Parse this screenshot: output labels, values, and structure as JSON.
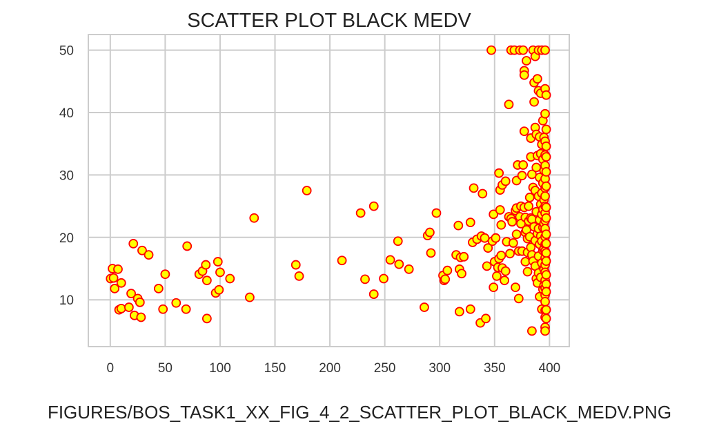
{
  "chart_data": {
    "type": "scatter",
    "title": "SCATTER PLOT BLACK MEDV",
    "xlabel": "",
    "ylabel": "",
    "xlim": [
      -20,
      418
    ],
    "ylim": [
      2.5,
      52.5
    ],
    "xticks": [
      0,
      50,
      100,
      150,
      200,
      250,
      300,
      350,
      400
    ],
    "yticks": [
      10,
      20,
      30,
      40,
      50
    ],
    "grid": true,
    "marker": {
      "fill": "#ffff00",
      "edge": "#ff0000"
    },
    "points": [
      [
        0.3,
        13.4
      ],
      [
        2,
        15
      ],
      [
        3,
        13.5
      ],
      [
        4,
        11.8
      ],
      [
        7,
        14.9
      ],
      [
        8,
        8.4
      ],
      [
        10,
        12.7
      ],
      [
        10,
        8.6
      ],
      [
        17,
        8.8
      ],
      [
        19,
        11
      ],
      [
        21,
        19
      ],
      [
        22,
        7.5
      ],
      [
        25,
        10.2
      ],
      [
        27,
        9.6
      ],
      [
        28,
        7.2
      ],
      [
        29,
        17.9
      ],
      [
        35,
        17.2
      ],
      [
        44,
        11.8
      ],
      [
        48,
        8.5
      ],
      [
        50,
        14.1
      ],
      [
        60,
        9.5
      ],
      [
        69,
        8.5
      ],
      [
        70,
        18.6
      ],
      [
        81,
        14.1
      ],
      [
        84,
        14.6
      ],
      [
        87,
        15.6
      ],
      [
        88,
        13.1
      ],
      [
        88,
        7
      ],
      [
        96,
        11.1
      ],
      [
        98,
        16.1
      ],
      [
        99,
        11.6
      ],
      [
        100,
        14.4
      ],
      [
        109,
        13.4
      ],
      [
        127,
        10.4
      ],
      [
        131,
        23.1
      ],
      [
        169,
        15.6
      ],
      [
        172,
        13.8
      ],
      [
        179,
        27.5
      ],
      [
        211,
        16.3
      ],
      [
        228,
        23.9
      ],
      [
        232,
        13.3
      ],
      [
        240,
        25
      ],
      [
        240,
        10.9
      ],
      [
        249,
        13.4
      ],
      [
        255,
        16.4
      ],
      [
        262,
        19.4
      ],
      [
        263,
        15.7
      ],
      [
        272,
        14.9
      ],
      [
        286,
        8.8
      ],
      [
        289,
        20.3
      ],
      [
        291,
        20.8
      ],
      [
        292,
        17.5
      ],
      [
        297,
        23.9
      ],
      [
        303,
        13.9
      ],
      [
        304,
        13.1
      ],
      [
        305,
        13.3
      ],
      [
        307,
        14.7
      ],
      [
        315,
        17.2
      ],
      [
        317,
        21.9
      ],
      [
        318,
        14.9
      ],
      [
        318,
        8.1
      ],
      [
        319,
        16.8
      ],
      [
        320,
        14.2
      ],
      [
        322,
        16.9
      ],
      [
        328,
        8.5
      ],
      [
        328,
        22.4
      ],
      [
        330,
        19.2
      ],
      [
        331,
        27.9
      ],
      [
        334,
        19.7
      ],
      [
        337,
        6.3
      ],
      [
        338,
        20.2
      ],
      [
        339,
        27
      ],
      [
        341,
        19.9
      ],
      [
        342,
        7
      ],
      [
        343,
        15.4
      ],
      [
        344,
        18.3
      ],
      [
        347,
        50
      ],
      [
        348,
        19.4
      ],
      [
        349,
        12
      ],
      [
        349,
        23.7
      ],
      [
        350,
        16.1
      ],
      [
        351,
        19.9
      ],
      [
        352,
        13.8
      ],
      [
        353,
        15.2
      ],
      [
        354,
        30.3
      ],
      [
        354,
        16.6
      ],
      [
        355,
        24.4
      ],
      [
        355,
        27.6
      ],
      [
        356,
        22
      ],
      [
        356,
        17.1
      ],
      [
        357,
        15.1
      ],
      [
        357,
        28.4
      ],
      [
        359,
        13.1
      ],
      [
        360,
        29
      ],
      [
        360,
        14.6
      ],
      [
        361,
        19.3
      ],
      [
        363,
        41.3
      ],
      [
        363,
        23.3
      ],
      [
        364,
        17.4
      ],
      [
        365,
        23
      ],
      [
        365,
        50
      ],
      [
        366,
        22.5
      ],
      [
        367,
        19.1
      ],
      [
        368,
        50
      ],
      [
        369,
        12
      ],
      [
        369,
        24.3
      ],
      [
        370,
        24.7
      ],
      [
        370,
        20.5
      ],
      [
        370,
        29.1
      ],
      [
        371,
        31.6
      ],
      [
        372,
        17.8
      ],
      [
        372,
        10.2
      ],
      [
        373,
        23.3
      ],
      [
        373,
        50
      ],
      [
        374,
        22.2
      ],
      [
        374,
        25
      ],
      [
        375,
        29.9
      ],
      [
        375,
        17.8
      ],
      [
        376,
        50
      ],
      [
        376,
        31.6
      ],
      [
        377,
        46.7
      ],
      [
        377,
        46
      ],
      [
        377,
        24.8
      ],
      [
        377,
        37
      ],
      [
        378,
        23.2
      ],
      [
        378,
        20.8
      ],
      [
        378,
        16.1
      ],
      [
        379,
        48.3
      ],
      [
        379,
        21.2
      ],
      [
        380,
        19.8
      ],
      [
        380,
        17.6
      ],
      [
        380,
        14.5
      ],
      [
        381,
        25
      ],
      [
        381,
        22.6
      ],
      [
        382,
        26.4
      ],
      [
        382,
        20.1
      ],
      [
        383,
        35.9
      ],
      [
        383,
        32.9
      ],
      [
        383,
        23.1
      ],
      [
        383,
        18.4
      ],
      [
        384,
        30.1
      ],
      [
        384,
        22.9
      ],
      [
        384,
        17.2
      ],
      [
        384,
        5
      ],
      [
        385,
        16.2
      ],
      [
        385,
        50
      ],
      [
        385,
        28
      ],
      [
        386,
        41.7
      ],
      [
        386,
        44.8
      ],
      [
        386,
        21.7
      ],
      [
        387,
        49
      ],
      [
        387,
        37.6
      ],
      [
        387,
        27.5
      ],
      [
        387,
        19.5
      ],
      [
        387,
        15.4
      ],
      [
        388,
        36.5
      ],
      [
        388,
        31.2
      ],
      [
        388,
        24.1
      ],
      [
        388,
        13.4
      ],
      [
        389,
        45.4
      ],
      [
        389,
        33.1
      ],
      [
        389,
        20.6
      ],
      [
        389,
        12.7
      ],
      [
        390,
        50
      ],
      [
        390,
        43.5
      ],
      [
        390,
        26.6
      ],
      [
        390,
        21.4
      ],
      [
        390,
        17
      ],
      [
        390,
        14.3
      ],
      [
        391,
        36.1
      ],
      [
        391,
        29.6
      ],
      [
        391,
        22.8
      ],
      [
        391,
        18.9
      ],
      [
        391,
        10.5
      ],
      [
        392,
        43.1
      ],
      [
        392,
        33.4
      ],
      [
        392,
        25.3
      ],
      [
        392,
        20.2
      ],
      [
        392,
        13.6
      ],
      [
        393,
        50
      ],
      [
        393,
        34.9
      ],
      [
        393,
        27.1
      ],
      [
        393,
        23.7
      ],
      [
        393,
        19.4
      ],
      [
        393,
        15.9
      ],
      [
        393,
        8.5
      ],
      [
        394,
        38.7
      ],
      [
        394,
        32.5
      ],
      [
        394,
        28.7
      ],
      [
        394,
        24.5
      ],
      [
        394,
        21.6
      ],
      [
        394,
        17.9
      ],
      [
        394,
        11.7
      ],
      [
        395,
        36
      ],
      [
        395,
        30.7
      ],
      [
        395,
        26
      ],
      [
        395,
        22.2
      ],
      [
        395,
        18.2
      ],
      [
        395,
        14.9
      ],
      [
        395,
        12.3
      ],
      [
        396,
        50
      ],
      [
        396,
        43.8
      ],
      [
        396,
        39.8
      ],
      [
        396,
        35.4
      ],
      [
        396,
        33.2
      ],
      [
        396,
        31.5
      ],
      [
        396,
        29.4
      ],
      [
        396,
        27.9
      ],
      [
        396,
        26.6
      ],
      [
        396,
        25
      ],
      [
        396,
        23.9
      ],
      [
        396,
        22.7
      ],
      [
        396,
        21.4
      ],
      [
        396,
        20.1
      ],
      [
        396,
        18.9
      ],
      [
        396,
        17.8
      ],
      [
        396,
        16.7
      ],
      [
        396,
        15.6
      ],
      [
        396,
        14.4
      ],
      [
        396,
        13.1
      ],
      [
        396,
        11.9
      ],
      [
        396,
        10.8
      ],
      [
        396,
        9.7
      ],
      [
        396,
        8.3
      ],
      [
        396,
        7.2
      ],
      [
        396,
        5.6
      ],
      [
        396,
        5
      ],
      [
        397,
        42.8
      ],
      [
        397,
        37.3
      ],
      [
        397,
        34.6
      ],
      [
        397,
        32.9
      ],
      [
        397,
        30.5
      ],
      [
        397,
        28.2
      ],
      [
        397,
        24.8
      ],
      [
        397,
        23.1
      ],
      [
        397,
        20.5
      ],
      [
        397,
        19
      ],
      [
        397,
        17.5
      ],
      [
        397,
        16.2
      ],
      [
        397,
        14
      ],
      [
        397,
        12.5
      ],
      [
        397,
        11.3
      ],
      [
        397,
        8.4
      ],
      [
        397,
        7
      ]
    ]
  },
  "caption": "FIGURES/BOS_TASK1_XX_FIG_4_2_SCATTER_PLOT_BLACK_MEDV.PNG"
}
